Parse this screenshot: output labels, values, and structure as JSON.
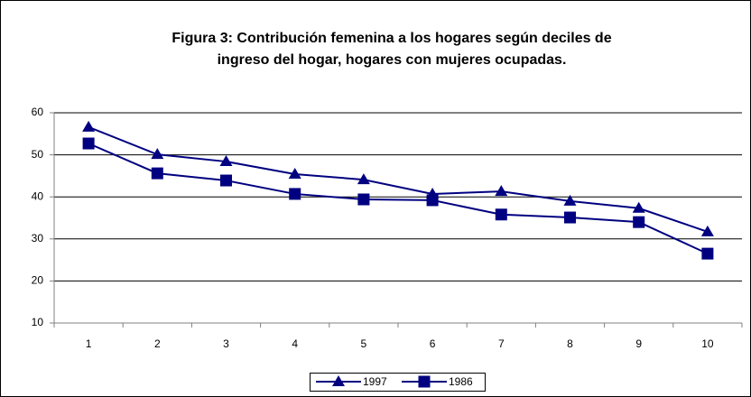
{
  "chart_data": {
    "type": "line",
    "title": [
      "Figura 3: Contribución femenina a los hogares según deciles de",
      "ingreso del hogar, hogares con mujeres ocupadas."
    ],
    "categories": [
      "1",
      "2",
      "3",
      "4",
      "5",
      "6",
      "7",
      "8",
      "9",
      "10"
    ],
    "series": [
      {
        "name": "1997",
        "color": "#000080",
        "marker": "triangle",
        "values": [
          56.6,
          50.1,
          48.4,
          45.4,
          44.1,
          40.7,
          41.3,
          39.0,
          37.3,
          31.7
        ]
      },
      {
        "name": "1986",
        "color": "#000080",
        "marker": "square",
        "values": [
          52.7,
          45.6,
          43.9,
          40.7,
          39.4,
          39.2,
          35.8,
          35.1,
          34.0,
          26.5
        ]
      }
    ],
    "ylim": [
      10,
      60
    ],
    "yticks": [
      10,
      20,
      30,
      40,
      50,
      60
    ],
    "grid": true,
    "legend": "bottom"
  }
}
